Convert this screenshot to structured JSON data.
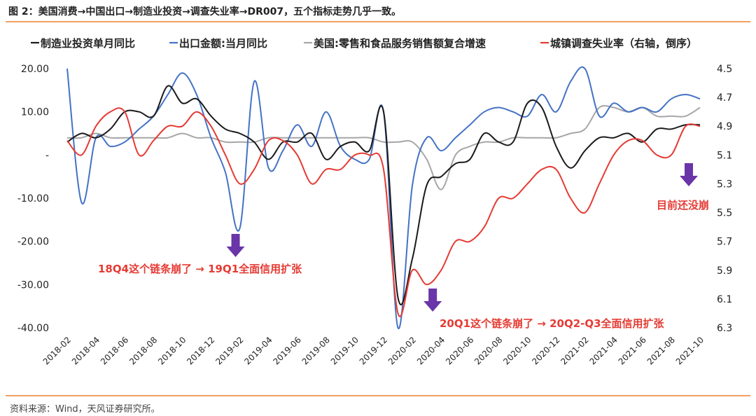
{
  "figure_title": "图 2：美国消费→中国出口→制造业投资→调查失业率→DR007，五个指标走势几乎一致。",
  "source_note": "资料来源：Wind，天风证券研究所。",
  "chart_data": {
    "type": "line",
    "title": "",
    "x": [
      "2018-02",
      "2018-03",
      "2018-04",
      "2018-05",
      "2018-06",
      "2018-07",
      "2018-08",
      "2018-09",
      "2018-10",
      "2018-11",
      "2018-12",
      "2019-01",
      "2019-02",
      "2019-03",
      "2019-04",
      "2019-05",
      "2019-06",
      "2019-07",
      "2019-08",
      "2019-09",
      "2019-10",
      "2019-11",
      "2019-12",
      "2020-01",
      "2020-02",
      "2020-03",
      "2020-04",
      "2020-05",
      "2020-06",
      "2020-07",
      "2020-08",
      "2020-09",
      "2020-10",
      "2020-11",
      "2020-12",
      "2021-01",
      "2021-02",
      "2021-03",
      "2021-04",
      "2021-05",
      "2021-06",
      "2021-07",
      "2021-08",
      "2021-09",
      "2021-10"
    ],
    "xticks": [
      "2018-02",
      "2018-04",
      "2018-06",
      "2018-08",
      "2018-10",
      "2018-12",
      "2019-02",
      "2019-04",
      "2019-06",
      "2019-08",
      "2019-10",
      "2019-12",
      "2020-02",
      "2020-04",
      "2020-06",
      "2020-08",
      "2020-10",
      "2020-12",
      "2021-02",
      "2021-04",
      "2021-06",
      "2021-08",
      "2021-10"
    ],
    "left_axis": {
      "ylim": [
        -40,
        20
      ],
      "ticks": [
        "20.00",
        "10.00",
        "-",
        "-10.00",
        "-20.00",
        "-30.00",
        "-40.00"
      ],
      "tick_values": [
        20,
        10,
        0,
        -10,
        -20,
        -30,
        -40
      ]
    },
    "right_axis": {
      "ylim": [
        4.5,
        6.3
      ],
      "inverted": true,
      "label": "城镇调查失业率（右轴，倒序）",
      "ticks": [
        "4.5",
        "4.7",
        "4.9",
        "5.1",
        "5.3",
        "5.5",
        "5.7",
        "5.9",
        "6.1",
        "6.3"
      ]
    },
    "series": [
      {
        "name": "制造业投资单月同比",
        "color": "#1a1a1a",
        "axis": "left",
        "values": [
          3,
          5,
          4,
          6,
          10,
          10,
          9,
          16,
          12,
          13,
          9,
          6,
          5,
          3,
          -1,
          3,
          3,
          5,
          -1,
          2,
          3,
          1,
          10,
          -33,
          -24,
          -7,
          -5,
          -2,
          -1,
          5,
          3,
          3,
          12,
          11,
          2,
          -3,
          1,
          4,
          4,
          5,
          3,
          6,
          6,
          7,
          7
        ]
      },
      {
        "name": "出口金额:当月同比",
        "color": "#4472c4",
        "axis": "left",
        "values": [
          20,
          -11,
          4,
          2,
          3,
          6,
          9,
          14,
          19,
          14,
          4,
          -4,
          -17,
          17,
          -3,
          1,
          7,
          2,
          10,
          2,
          -1,
          -1,
          10,
          -40,
          -7,
          4,
          1,
          4,
          7,
          10,
          11,
          10,
          9,
          14,
          10,
          17,
          20,
          9,
          12,
          10,
          11,
          10,
          13,
          14,
          13
        ]
      },
      {
        "name": "美国:零售和食品服务销售额复合增速",
        "color": "#a6a6a6",
        "axis": "left",
        "values": [
          4,
          4,
          5,
          4,
          4,
          4,
          4,
          4,
          5,
          4,
          4,
          3,
          3,
          3,
          4,
          4,
          4,
          4,
          4,
          4,
          4,
          4,
          3,
          3,
          3,
          -1,
          -8,
          0,
          2,
          3,
          3,
          4,
          4,
          4,
          4,
          5,
          6,
          11,
          11,
          10,
          11,
          9,
          9,
          9,
          11
        ]
      },
      {
        "name": "城镇调查失业率（右轴，倒序）",
        "color": "#e53b34",
        "axis": "right",
        "values": [
          5.0,
          5.1,
          4.9,
          4.8,
          4.8,
          5.1,
          5.0,
          4.9,
          4.9,
          4.8,
          4.9,
          5.1,
          5.3,
          5.2,
          5.0,
          5.0,
          5.1,
          5.3,
          5.2,
          5.2,
          5.1,
          5.1,
          5.2,
          6.2,
          5.9,
          6.0,
          5.9,
          5.7,
          5.7,
          5.6,
          5.4,
          5.4,
          5.3,
          5.2,
          5.2,
          5.4,
          5.5,
          5.3,
          5.1,
          5.0,
          5.0,
          5.1,
          5.1,
          4.9,
          4.9
        ]
      }
    ],
    "annotations": [
      {
        "text": "18Q4这个链条崩了 → 19Q1全面信用扩张",
        "x": "2019-02"
      },
      {
        "text": "20Q1这个链条崩了 → 20Q2-Q3全面信用扩张",
        "x": "2020-04"
      },
      {
        "text": "目前还没崩",
        "x": "2021-10"
      }
    ]
  }
}
